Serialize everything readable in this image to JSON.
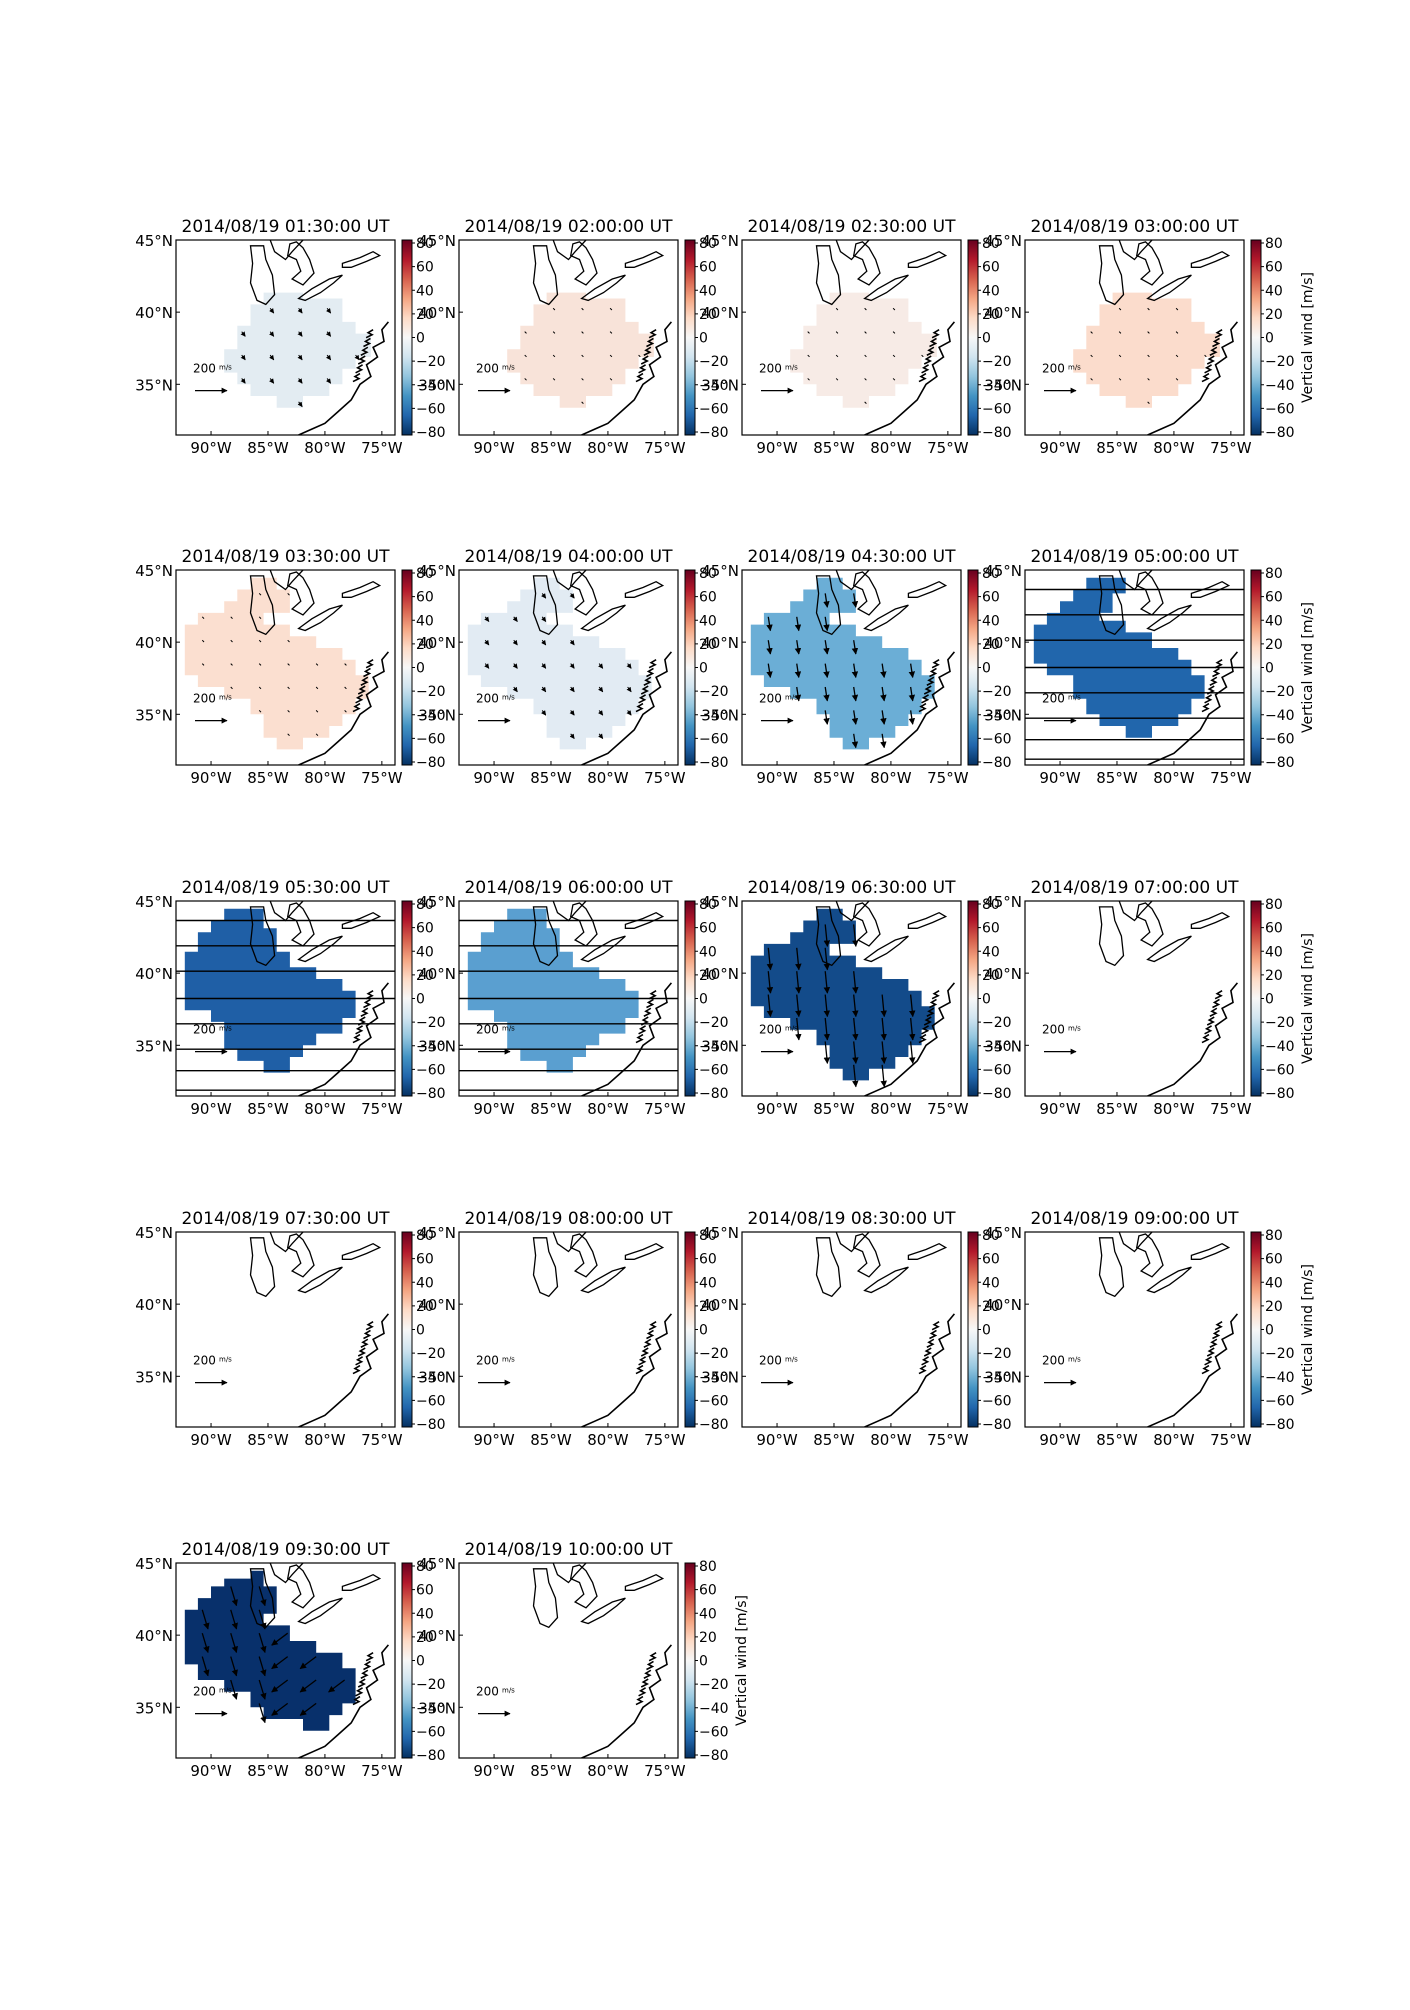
{
  "figure": {
    "vector_scale_label": "200",
    "vector_scale_unit": "m/s",
    "colorbar_label": "Vertical wind [m/s]",
    "colorbar_ticks": [
      "80",
      "60",
      "40",
      "20",
      "0",
      "−20",
      "−40",
      "−60",
      "−80"
    ],
    "lon_ticks": [
      "90°W",
      "85°W",
      "80°W",
      "75°W"
    ],
    "lat_ticks": [
      "45°N",
      "40°N",
      "35°N"
    ],
    "colors": {
      "map_line": "#000000",
      "cmap_stops": [
        "#67001f",
        "#b2182b",
        "#d6604d",
        "#f4a582",
        "#fddbc7",
        "#f7f7f7",
        "#d1e5f0",
        "#92c5de",
        "#4393c3",
        "#2166ac",
        "#053061"
      ]
    },
    "panels": [
      {
        "title": "2014/08/19 01:30:00 UT",
        "shape": "A",
        "fill": "#e3ecf2",
        "arrow": "small_se",
        "hlines": false
      },
      {
        "title": "2014/08/19 02:00:00 UT",
        "shape": "A",
        "fill": "#f8e3d9",
        "arrow": "tiny",
        "hlines": false
      },
      {
        "title": "2014/08/19 02:30:00 UT",
        "shape": "A",
        "fill": "#f7ebe6",
        "arrow": "tiny",
        "hlines": false
      },
      {
        "title": "2014/08/19 03:00:00 UT",
        "shape": "A",
        "fill": "#fbdccc",
        "arrow": "tiny",
        "hlines": false
      },
      {
        "title": "2014/08/19 03:30:00 UT",
        "shape": "B",
        "fill": "#fbdfd0",
        "arrow": "tiny",
        "hlines": false
      },
      {
        "title": "2014/08/19 04:00:00 UT",
        "shape": "B",
        "fill": "#e2ebf3",
        "arrow": "small_se",
        "hlines": false
      },
      {
        "title": "2014/08/19 04:30:00 UT",
        "shape": "B",
        "fill": "#6baed6",
        "arrow": "med_s",
        "hlines": false
      },
      {
        "title": "2014/08/19 05:00:00 UT",
        "shape": "C",
        "fill": "#2166ac",
        "arrow": "none",
        "hlines": true
      },
      {
        "title": "2014/08/19 05:30:00 UT",
        "shape": "D",
        "fill": "#1f5fa6",
        "arrow": "none",
        "hlines": true
      },
      {
        "title": "2014/08/19 06:00:00 UT",
        "shape": "D",
        "fill": "#5a9fd0",
        "arrow": "none",
        "hlines": true
      },
      {
        "title": "2014/08/19 06:30:00 UT",
        "shape": "B",
        "fill": "#134b8a",
        "arrow": "big_s",
        "hlines": false
      },
      {
        "title": "2014/08/19 07:00:00 UT",
        "shape": "none",
        "fill": "",
        "arrow": "none",
        "hlines": false
      },
      {
        "title": "2014/08/19 07:30:00 UT",
        "shape": "none",
        "fill": "",
        "arrow": "none",
        "hlines": false
      },
      {
        "title": "2014/08/19 08:00:00 UT",
        "shape": "none",
        "fill": "",
        "arrow": "none",
        "hlines": false
      },
      {
        "title": "2014/08/19 08:30:00 UT",
        "shape": "none",
        "fill": "",
        "arrow": "none",
        "hlines": false
      },
      {
        "title": "2014/08/19 09:00:00 UT",
        "shape": "none",
        "fill": "",
        "arrow": "none",
        "hlines": false
      },
      {
        "title": "2014/08/19 09:30:00 UT",
        "shape": "E",
        "fill": "#08306b",
        "arrow": "big_mixed",
        "hlines": false
      },
      {
        "title": "2014/08/19 10:00:00 UT",
        "shape": "none",
        "fill": "",
        "arrow": "none",
        "hlines": false
      }
    ]
  }
}
